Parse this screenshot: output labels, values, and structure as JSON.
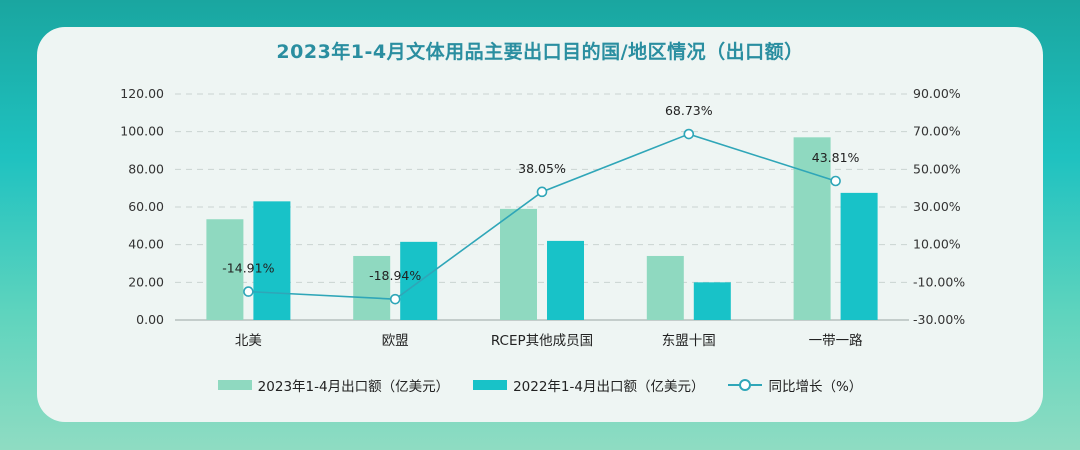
{
  "chart_data": {
    "type": "bar+line",
    "title": "2023年1-4月文体用品主要出口目的国/地区情况（出口额）",
    "categories": [
      "北美",
      "欧盟",
      "RCEP其他成员国",
      "东盟十国",
      "一带一路"
    ],
    "series": [
      {
        "name": "2023年1-4月出口额（亿美元）",
        "type": "bar",
        "axis": "left",
        "color": "#8fd9c0",
        "values": [
          53.5,
          34.0,
          59.0,
          34.0,
          97.0
        ]
      },
      {
        "name": "2022年1-4月出口额（亿美元）",
        "type": "bar",
        "axis": "left",
        "color": "#18c2c8",
        "values": [
          63.0,
          41.5,
          42.0,
          20.0,
          67.5
        ]
      },
      {
        "name": "同比增长（%）",
        "type": "line",
        "axis": "right",
        "color": "#2fa6b8",
        "values": [
          -14.91,
          -18.94,
          38.05,
          68.73,
          43.81
        ]
      }
    ],
    "data_labels": [
      "-14.91%",
      "-18.94%",
      "38.05%",
      "68.73%",
      "43.81%"
    ],
    "left_axis": {
      "ylim": [
        0,
        120
      ],
      "ticks": [
        "0.00",
        "20.00",
        "40.00",
        "60.00",
        "80.00",
        "100.00",
        "120.00"
      ]
    },
    "right_axis": {
      "ylim": [
        -30,
        90
      ],
      "ticks": [
        "-30.00%",
        "-10.00%",
        "10.00%",
        "30.00%",
        "50.00%",
        "70.00%",
        "90.00%"
      ]
    },
    "grid": true,
    "legend_position": "bottom"
  }
}
